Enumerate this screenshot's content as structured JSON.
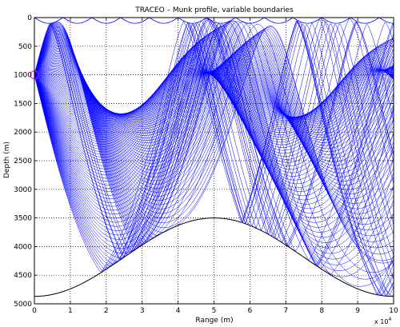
{
  "chart_data": {
    "type": "line",
    "title": "TRACEO – Munk profile, variable boundaries",
    "xlabel": "Range (m)",
    "ylabel": "Depth (m)",
    "x_multiplier_label": "x 10",
    "x_multiplier_exponent": "4",
    "xlim": [
      0,
      100000
    ],
    "ylim": [
      0,
      5000
    ],
    "y_reversed": true,
    "grid": true,
    "grid_style": "dotted",
    "x_ticks": [
      0,
      10000,
      20000,
      30000,
      40000,
      50000,
      60000,
      70000,
      80000,
      90000,
      100000
    ],
    "x_tick_labels": [
      "0",
      "1",
      "2",
      "3",
      "4",
      "5",
      "6",
      "7",
      "8",
      "9",
      "10"
    ],
    "y_ticks": [
      0,
      500,
      1000,
      1500,
      2000,
      2500,
      3000,
      3500,
      4000,
      4500,
      5000
    ],
    "y_tick_labels": [
      "0",
      "500",
      "1000",
      "1500",
      "2000",
      "2500",
      "3000",
      "3500",
      "4000",
      "4500",
      "5000"
    ],
    "source": {
      "x": 0,
      "y": 1000,
      "marker": "circle",
      "color": "#ff00ff"
    },
    "ray_color": "#0000ff",
    "boundary_color": "#000000",
    "series": [
      {
        "role": "bottom-boundary",
        "x": [
          0,
          10000,
          20000,
          30000,
          40000,
          50000,
          60000,
          70000,
          80000,
          90000,
          100000
        ],
        "y": [
          4870,
          4700,
          4400,
          4000,
          3650,
          3500,
          3650,
          4000,
          4400,
          4700,
          4870
        ]
      },
      {
        "role": "surface-boundary",
        "x": [
          0,
          4000,
          8000,
          12000,
          16000,
          20000,
          24000,
          28000,
          32000,
          36000,
          40000,
          44000,
          48000,
          52000,
          56000,
          60000,
          64000,
          68000,
          72000,
          76000,
          80000,
          84000,
          88000,
          92000,
          96000,
          100000
        ],
        "y": [
          0,
          100,
          0,
          100,
          0,
          100,
          0,
          100,
          0,
          100,
          0,
          100,
          0,
          100,
          0,
          100,
          0,
          100,
          0,
          100,
          0,
          100,
          0,
          100,
          0,
          100
        ]
      },
      {
        "role": "ray-fan",
        "launch_angle_deg_min": -14,
        "launch_angle_deg_max": 14,
        "ray_count": 120
      }
    ]
  }
}
